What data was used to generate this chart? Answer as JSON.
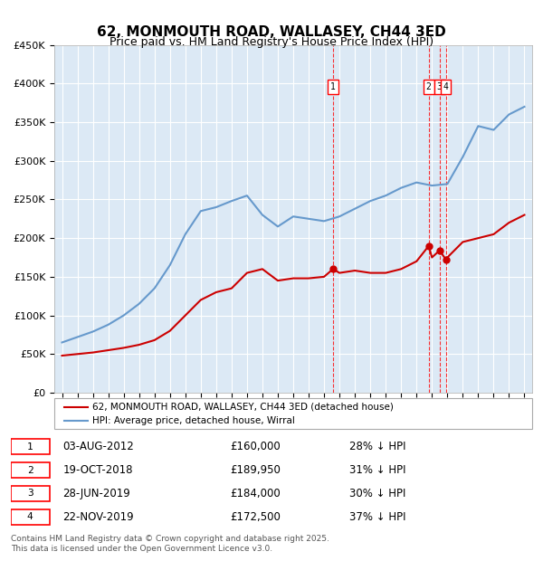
{
  "title": "62, MONMOUTH ROAD, WALLASEY, CH44 3ED",
  "subtitle": "Price paid vs. HM Land Registry's House Price Index (HPI)",
  "xlabel": "",
  "ylabel": "",
  "ylim": [
    0,
    450000
  ],
  "yticks": [
    0,
    50000,
    100000,
    150000,
    200000,
    250000,
    300000,
    350000,
    400000,
    450000
  ],
  "ytick_labels": [
    "£0",
    "£50K",
    "£100K",
    "£150K",
    "£200K",
    "£250K",
    "£300K",
    "£350K",
    "£400K",
    "£450K"
  ],
  "xlim_start": 1994.5,
  "xlim_end": 2025.5,
  "background_color": "#dce9f5",
  "plot_bg_color": "#dce9f5",
  "grid_color": "#ffffff",
  "legend_line1": "62, MONMOUTH ROAD, WALLASEY, CH44 3ED (detached house)",
  "legend_line2": "HPI: Average price, detached house, Wirral",
  "red_color": "#cc0000",
  "blue_color": "#6699cc",
  "sale_dates_num": [
    2012.583,
    2018.792,
    2019.492,
    2019.9
  ],
  "sale_prices": [
    160000,
    189950,
    184000,
    172500
  ],
  "sale_labels": [
    "1",
    "2",
    "3",
    "4"
  ],
  "sale_pct": [
    "28% ↓ HPI",
    "31% ↓ HPI",
    "30% ↓ HPI",
    "37% ↓ HPI"
  ],
  "sale_dates_str": [
    "03-AUG-2012",
    "19-OCT-2018",
    "28-JUN-2019",
    "22-NOV-2019"
  ],
  "sale_prices_str": [
    "£160,000",
    "£189,950",
    "£184,000",
    "£172,500"
  ],
  "footer": "Contains HM Land Registry data © Crown copyright and database right 2025.\nThis data is licensed under the Open Government Licence v3.0.",
  "hpi_years": [
    1995,
    1996,
    1997,
    1998,
    1999,
    2000,
    2001,
    2002,
    2003,
    2004,
    2005,
    2006,
    2007,
    2008,
    2009,
    2010,
    2011,
    2012,
    2013,
    2014,
    2015,
    2016,
    2017,
    2018,
    2019,
    2020,
    2021,
    2022,
    2023,
    2024,
    2025
  ],
  "hpi_values": [
    65000,
    72000,
    79000,
    88000,
    100000,
    115000,
    135000,
    165000,
    205000,
    235000,
    240000,
    248000,
    255000,
    230000,
    215000,
    228000,
    225000,
    222000,
    228000,
    238000,
    248000,
    255000,
    265000,
    272000,
    268000,
    270000,
    305000,
    345000,
    340000,
    360000,
    370000
  ],
  "prop_years": [
    1995,
    1996,
    1997,
    1998,
    1999,
    2000,
    2001,
    2002,
    2003,
    2004,
    2005,
    2006,
    2007,
    2008,
    2009,
    2010,
    2011,
    2012,
    2012.583,
    2013,
    2014,
    2015,
    2016,
    2017,
    2018,
    2018.792,
    2019,
    2019.492,
    2019.9,
    2020,
    2021,
    2022,
    2023,
    2024,
    2025
  ],
  "prop_values": [
    48000,
    50000,
    52000,
    55000,
    58000,
    62000,
    68000,
    80000,
    100000,
    120000,
    130000,
    135000,
    155000,
    160000,
    145000,
    148000,
    148000,
    150000,
    160000,
    155000,
    158000,
    155000,
    155000,
    160000,
    170000,
    189950,
    175000,
    184000,
    172500,
    175000,
    195000,
    200000,
    205000,
    220000,
    230000
  ]
}
